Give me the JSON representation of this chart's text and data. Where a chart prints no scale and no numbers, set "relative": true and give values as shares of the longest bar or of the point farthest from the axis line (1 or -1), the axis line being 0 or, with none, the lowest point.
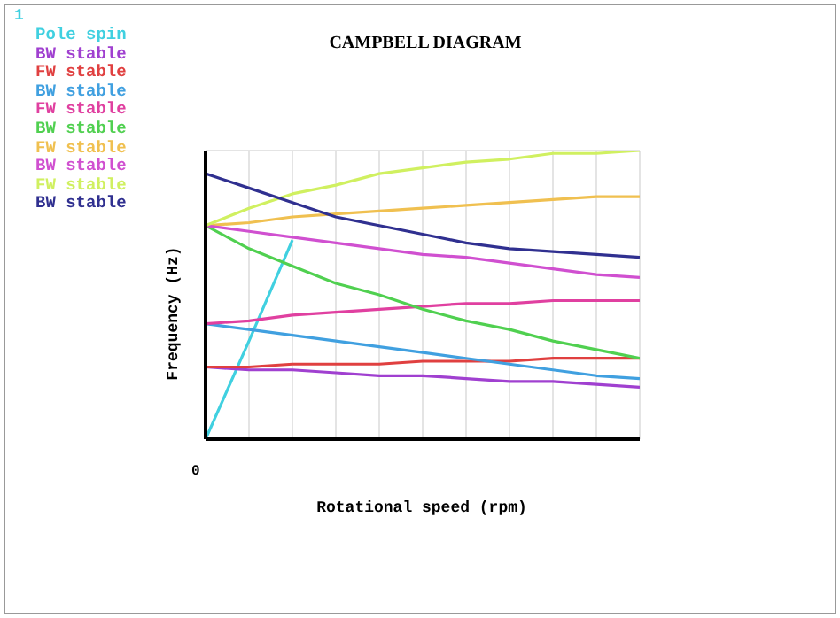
{
  "chart_data": {
    "type": "line",
    "title": "CAMPBELL DIAGRAM",
    "xlabel": "Rotational speed (rpm)",
    "ylabel": "Frequency (Hz)",
    "annotations": [
      "1",
      "0"
    ],
    "relative": true,
    "grid": true,
    "categories": [
      null,
      null,
      null,
      null,
      null,
      null,
      null,
      null,
      null,
      null,
      null
    ],
    "series": [
      {
        "name": "Pole spin",
        "color": "#40d0e0",
        "values": [
          0,
          0.34,
          0.69,
          null,
          null,
          null,
          null,
          null,
          null,
          null,
          null
        ]
      },
      {
        "name": "BW stable",
        "color": "#a040d0",
        "values": [
          0.25,
          0.24,
          0.24,
          0.23,
          0.22,
          0.22,
          0.21,
          0.2,
          0.2,
          0.19,
          0.18
        ]
      },
      {
        "name": "FW stable",
        "color": "#e04040",
        "values": [
          0.25,
          0.25,
          0.26,
          0.26,
          0.26,
          0.27,
          0.27,
          0.27,
          0.28,
          0.28,
          0.28
        ]
      },
      {
        "name": "BW stable",
        "color": "#40a0e0",
        "values": [
          0.4,
          0.38,
          0.36,
          0.34,
          0.32,
          0.3,
          0.28,
          0.26,
          0.24,
          0.22,
          0.21
        ]
      },
      {
        "name": "FW stable",
        "color": "#e040a0",
        "values": [
          0.4,
          0.41,
          0.43,
          0.44,
          0.45,
          0.46,
          0.47,
          0.47,
          0.48,
          0.48,
          0.48
        ]
      },
      {
        "name": "BW stable",
        "color": "#50d050",
        "values": [
          0.74,
          0.66,
          0.6,
          0.54,
          0.5,
          0.45,
          0.41,
          0.38,
          0.34,
          0.31,
          0.28
        ]
      },
      {
        "name": "FW stable",
        "color": "#f0c050",
        "values": [
          0.74,
          0.75,
          0.77,
          0.78,
          0.79,
          0.8,
          0.81,
          0.82,
          0.83,
          0.84,
          0.84
        ]
      },
      {
        "name": "BW stable",
        "color": "#d050d0",
        "values": [
          0.74,
          0.72,
          0.7,
          0.68,
          0.66,
          0.64,
          0.63,
          0.61,
          0.59,
          0.57,
          0.56
        ]
      },
      {
        "name": "FW stable",
        "color": "#d0f060",
        "values": [
          0.74,
          0.8,
          0.85,
          0.88,
          0.92,
          0.94,
          0.96,
          0.97,
          0.99,
          0.99,
          1
        ]
      },
      {
        "name": "BW stable",
        "color": "#303090",
        "values": [
          0.92,
          0.87,
          0.82,
          0.77,
          0.74,
          0.71,
          0.68,
          0.66,
          0.65,
          0.64,
          0.63
        ]
      }
    ]
  }
}
